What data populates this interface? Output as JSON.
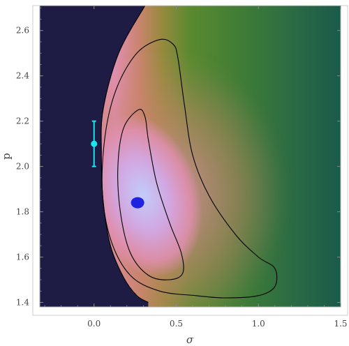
{
  "chart_data": {
    "type": "heatmap",
    "title": "",
    "xlabel": "σ",
    "ylabel": "p",
    "xlim": [
      -0.33,
      1.5
    ],
    "ylim": [
      1.38,
      2.71
    ],
    "x_ticks": [
      0.0,
      0.5,
      1.0,
      1.5
    ],
    "x_tick_labels": [
      "0.0",
      "0.5",
      "1.0",
      "1.5"
    ],
    "y_ticks": [
      1.4,
      1.6,
      1.8,
      2.0,
      2.2,
      2.4,
      2.6
    ],
    "y_tick_labels": [
      "1.4",
      "1.6",
      "1.8",
      "2.0",
      "2.2",
      "2.4",
      "2.6"
    ],
    "colormap": {
      "excluded": "#1e1c44",
      "levels": [
        "#1a5a4a",
        "#2f7040",
        "#5a8a30",
        "#9a8a40",
        "#c9846e",
        "#e08fb0",
        "#d2a6e0",
        "#c2ccfa"
      ]
    },
    "contours": [
      {
        "name": "inner",
        "points": [
          [
            0.27,
            2.25
          ],
          [
            0.18,
            2.17
          ],
          [
            0.145,
            2.0
          ],
          [
            0.16,
            1.8
          ],
          [
            0.22,
            1.62
          ],
          [
            0.33,
            1.52
          ],
          [
            0.46,
            1.5
          ],
          [
            0.54,
            1.53
          ],
          [
            0.53,
            1.62
          ],
          [
            0.46,
            1.75
          ],
          [
            0.38,
            1.93
          ],
          [
            0.33,
            2.12
          ],
          [
            0.31,
            2.22
          ]
        ]
      },
      {
        "name": "middle",
        "points": [
          [
            0.4,
            2.56
          ],
          [
            0.26,
            2.5
          ],
          [
            0.14,
            2.35
          ],
          [
            0.07,
            2.15
          ],
          [
            0.05,
            1.9
          ],
          [
            0.1,
            1.68
          ],
          [
            0.22,
            1.52
          ],
          [
            0.4,
            1.45
          ],
          [
            0.62,
            1.43
          ],
          [
            0.8,
            1.42
          ],
          [
            1.0,
            1.43
          ],
          [
            1.1,
            1.47
          ],
          [
            1.1,
            1.55
          ],
          [
            1.0,
            1.6
          ],
          [
            0.86,
            1.7
          ],
          [
            0.7,
            1.87
          ],
          [
            0.6,
            2.05
          ],
          [
            0.55,
            2.27
          ],
          [
            0.51,
            2.48
          ],
          [
            0.48,
            2.54
          ]
        ]
      },
      {
        "name": "boundary",
        "points": [
          [
            0.31,
            2.71
          ],
          [
            0.15,
            2.5
          ],
          [
            0.055,
            2.25
          ],
          [
            0.045,
            2.05
          ],
          [
            0.055,
            1.85
          ],
          [
            0.1,
            1.65
          ],
          [
            0.18,
            1.51
          ],
          [
            0.26,
            1.43
          ],
          [
            0.33,
            1.4
          ]
        ]
      }
    ],
    "best_fit_point": {
      "x": 0.265,
      "y": 1.84,
      "color": "#1d23e0"
    },
    "reference_point": {
      "x": 0.0,
      "y": 2.1,
      "y_err_low": 2.0,
      "y_err_high": 2.2,
      "color": "#19e6f0"
    }
  }
}
